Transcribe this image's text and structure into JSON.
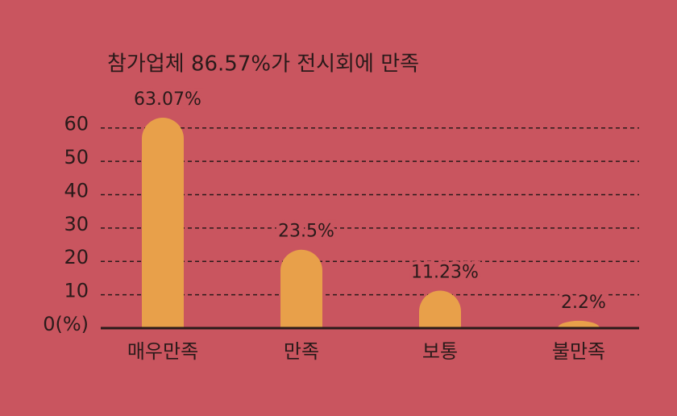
{
  "chart_data": {
    "type": "bar",
    "title": "참가업체 86.57%가 전시회에 만족",
    "categories": [
      "매우만족",
      "만족",
      "보통",
      "불만족"
    ],
    "values": [
      63.07,
      23.5,
      11.23,
      2.2
    ],
    "value_labels": [
      "63.07%",
      "23.5%",
      "11.23%",
      "2.2%"
    ],
    "color": "#e8a04a",
    "ylim": [
      0,
      65
    ],
    "yticks": [
      {
        "value": 0,
        "label": "0(%)"
      },
      10,
      20,
      30,
      40,
      50,
      60
    ],
    "grid": true
  }
}
